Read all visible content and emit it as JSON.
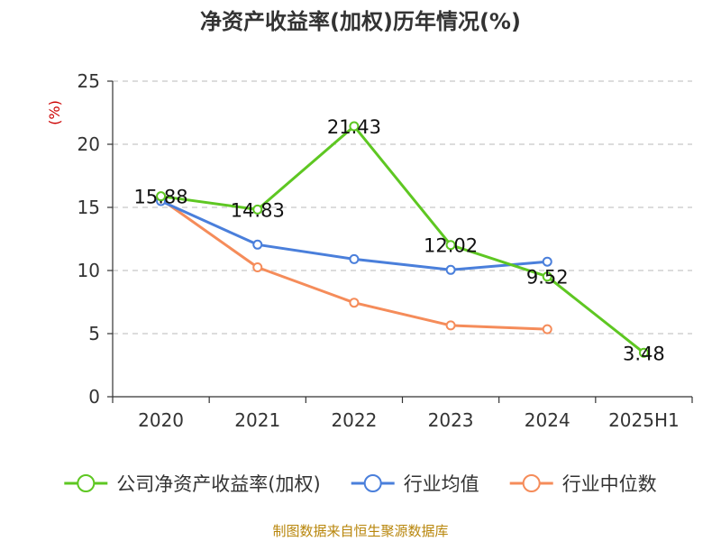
{
  "chart_data": {
    "type": "line",
    "title": "净资产收益率(加权)历年情况(%)",
    "ylabel": "(%)",
    "categories": [
      "2020",
      "2021",
      "2022",
      "2023",
      "2024",
      "2025H1"
    ],
    "ylim": [
      0,
      25
    ],
    "yticks": [
      "0",
      "5",
      "10",
      "15",
      "20",
      "25"
    ],
    "grid": true,
    "legend_position": "bottom",
    "series": [
      {
        "name": "公司净资产收益率(加权)",
        "color": "#5ec722",
        "values": [
          15.88,
          14.83,
          21.43,
          12.02,
          9.52,
          3.48
        ],
        "labels": [
          "15.88",
          "14.83",
          "21.43",
          "12.02",
          "9.52",
          "3.48"
        ]
      },
      {
        "name": "行业均值",
        "color": "#4a7fdb",
        "values": [
          15.5,
          12.05,
          10.9,
          10.05,
          10.7,
          null
        ]
      },
      {
        "name": "行业中位数",
        "color": "#f58c5a",
        "values": [
          15.65,
          10.25,
          7.45,
          5.65,
          5.35,
          null
        ]
      }
    ]
  },
  "source": "制图数据来自恒生聚源数据库"
}
